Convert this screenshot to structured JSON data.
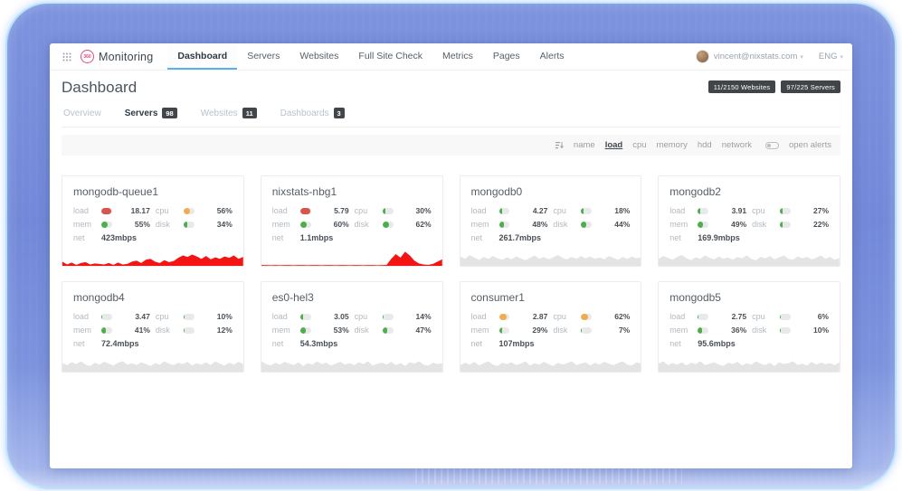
{
  "nav": {
    "logo_badge": "360",
    "logo_text": "Monitoring",
    "tabs": [
      {
        "label": "Dashboard",
        "active": true
      },
      {
        "label": "Servers",
        "active": false
      },
      {
        "label": "Websites",
        "active": false
      },
      {
        "label": "Full Site Check",
        "active": false
      },
      {
        "label": "Metrics",
        "active": false
      },
      {
        "label": "Pages",
        "active": false
      },
      {
        "label": "Alerts",
        "active": false
      }
    ],
    "user_email": "vincent@nixstats.com",
    "language": "ENG"
  },
  "page": {
    "title": "Dashboard",
    "counters": [
      "11/2150 Websites",
      "97/225 Servers"
    ],
    "subtabs": [
      {
        "label": "Overview",
        "count": null,
        "active": false
      },
      {
        "label": "Servers",
        "count": "98",
        "active": true
      },
      {
        "label": "Websites",
        "count": "11",
        "active": false
      },
      {
        "label": "Dashboards",
        "count": "3",
        "active": false
      }
    ],
    "sortbar": {
      "options": [
        {
          "label": "name",
          "active": false
        },
        {
          "label": "load",
          "active": true
        },
        {
          "label": "cpu",
          "active": false
        },
        {
          "label": "memory",
          "active": false
        },
        {
          "label": "hdd",
          "active": false
        },
        {
          "label": "network",
          "active": false
        }
      ],
      "toggle_label": "open alerts"
    }
  },
  "theme": {
    "accent_blue": "#58b0ef",
    "bar_red": "#d9534f",
    "bar_orange": "#f0ad4e",
    "bar_green": "#4cae4c",
    "spark_red": "#f51414",
    "spark_gray": "#e4e4e4",
    "badge_dark": "#42464b"
  },
  "servers": [
    {
      "name": "mongodb-queue1",
      "metrics": {
        "load": {
          "label": "load",
          "value": "18.17",
          "pct": 93,
          "color": "#d9534f"
        },
        "cpu": {
          "label": "cpu",
          "value": "56%",
          "pct": 56,
          "color": "#f0ad4e"
        },
        "mem": {
          "label": "mem",
          "value": "55%",
          "pct": 55,
          "color": "#4cae4c"
        },
        "disk": {
          "label": "disk",
          "value": "34%",
          "pct": 34,
          "color": "#4cae4c"
        },
        "net": {
          "label": "net",
          "value": "423mbps"
        }
      },
      "spark": {
        "color": "#f51414",
        "baseline": true,
        "values": [
          18,
          6,
          14,
          4,
          12,
          16,
          6,
          10,
          8,
          6,
          12,
          4,
          14,
          6,
          8,
          18,
          22,
          12,
          26,
          30,
          18,
          12,
          24,
          16,
          20,
          34,
          44,
          38,
          48,
          40,
          30,
          42,
          28,
          36,
          30,
          40,
          34,
          44,
          30,
          38
        ]
      }
    },
    {
      "name": "nixstats-nbg1",
      "metrics": {
        "load": {
          "label": "load",
          "value": "5.79",
          "pct": 97,
          "color": "#d9534f"
        },
        "cpu": {
          "label": "cpu",
          "value": "30%",
          "pct": 30,
          "color": "#4cae4c"
        },
        "mem": {
          "label": "mem",
          "value": "60%",
          "pct": 60,
          "color": "#4cae4c"
        },
        "disk": {
          "label": "disk",
          "value": "62%",
          "pct": 62,
          "color": "#4cae4c"
        },
        "net": {
          "label": "net",
          "value": "1.1mbps"
        }
      },
      "spark": {
        "color": "#f51414",
        "baseline": true,
        "values": [
          3,
          3,
          2,
          3,
          2,
          3,
          3,
          2,
          3,
          3,
          2,
          3,
          3,
          2,
          3,
          3,
          2,
          3,
          3,
          2,
          3,
          3,
          2,
          3,
          3,
          2,
          3,
          4,
          30,
          50,
          35,
          60,
          44,
          22,
          10,
          6,
          4,
          8,
          18,
          28
        ]
      }
    },
    {
      "name": "mongodb0",
      "metrics": {
        "load": {
          "label": "load",
          "value": "4.27",
          "pct": 28,
          "color": "#4cae4c"
        },
        "cpu": {
          "label": "cpu",
          "value": "18%",
          "pct": 18,
          "color": "#4cae4c"
        },
        "mem": {
          "label": "mem",
          "value": "48%",
          "pct": 48,
          "color": "#4cae4c"
        },
        "disk": {
          "label": "disk",
          "value": "44%",
          "pct": 44,
          "color": "#4cae4c"
        },
        "net": {
          "label": "net",
          "value": "261.7mbps"
        }
      },
      "spark": {
        "color": "#e4e4e4",
        "baseline": false,
        "values": [
          40,
          30,
          45,
          35,
          25,
          38,
          30,
          42,
          32,
          26,
          36,
          28,
          40,
          32,
          24,
          34,
          44,
          30,
          38,
          28,
          36,
          46,
          34,
          28,
          38,
          30,
          42,
          32,
          40,
          30,
          36,
          28,
          42,
          34,
          26,
          38,
          30,
          40,
          32,
          36
        ]
      }
    },
    {
      "name": "mongodb2",
      "metrics": {
        "load": {
          "label": "load",
          "value": "3.91",
          "pct": 24,
          "color": "#4cae4c"
        },
        "cpu": {
          "label": "cpu",
          "value": "27%",
          "pct": 27,
          "color": "#4cae4c"
        },
        "mem": {
          "label": "mem",
          "value": "49%",
          "pct": 49,
          "color": "#4cae4c"
        },
        "disk": {
          "label": "disk",
          "value": "22%",
          "pct": 22,
          "color": "#4cae4c"
        },
        "net": {
          "label": "net",
          "value": "169.9mbps"
        }
      },
      "spark": {
        "color": "#e4e4e4",
        "baseline": false,
        "values": [
          30,
          42,
          34,
          26,
          38,
          46,
          32,
          24,
          36,
          30,
          44,
          34,
          28,
          40,
          30,
          36,
          26,
          38,
          32,
          44,
          30,
          24,
          38,
          32,
          42,
          28,
          36,
          44,
          30,
          26,
          40,
          32,
          38,
          28,
          34,
          44,
          30,
          38,
          26,
          34
        ]
      }
    },
    {
      "name": "mongodb4",
      "metrics": {
        "load": {
          "label": "load",
          "value": "3.47",
          "pct": 9,
          "color": "#4cae4c"
        },
        "cpu": {
          "label": "cpu",
          "value": "10%",
          "pct": 10,
          "color": "#4cae4c"
        },
        "mem": {
          "label": "mem",
          "value": "41%",
          "pct": 41,
          "color": "#4cae4c"
        },
        "disk": {
          "label": "disk",
          "value": "12%",
          "pct": 12,
          "color": "#4cae4c"
        },
        "net": {
          "label": "net",
          "value": "72.4mbps"
        }
      },
      "spark": {
        "color": "#e4e4e4",
        "baseline": false,
        "values": [
          36,
          28,
          40,
          32,
          44,
          30,
          24,
          38,
          30,
          42,
          34,
          26,
          38,
          44,
          30,
          36,
          28,
          40,
          32,
          24,
          36,
          30,
          44,
          34,
          28,
          38,
          32,
          42,
          26,
          36,
          30,
          40,
          28,
          44,
          34,
          26,
          38,
          30,
          42,
          32
        ]
      }
    },
    {
      "name": "es0-hel3",
      "metrics": {
        "load": {
          "label": "load",
          "value": "3.05",
          "pct": 25,
          "color": "#4cae4c"
        },
        "cpu": {
          "label": "cpu",
          "value": "14%",
          "pct": 14,
          "color": "#4cae4c"
        },
        "mem": {
          "label": "mem",
          "value": "53%",
          "pct": 53,
          "color": "#4cae4c"
        },
        "disk": {
          "label": "disk",
          "value": "47%",
          "pct": 47,
          "color": "#4cae4c"
        },
        "net": {
          "label": "net",
          "value": "54.3mbps"
        }
      },
      "spark": {
        "color": "#e4e4e4",
        "baseline": false,
        "values": [
          44,
          32,
          26,
          38,
          30,
          42,
          34,
          28,
          40,
          24,
          36,
          30,
          44,
          32,
          38,
          26,
          34,
          42,
          30,
          36,
          28,
          40,
          32,
          44,
          26,
          34,
          38,
          30,
          42,
          28,
          36,
          24,
          40,
          34,
          44,
          30,
          26,
          38,
          32,
          36
        ]
      }
    },
    {
      "name": "consumer1",
      "metrics": {
        "load": {
          "label": "load",
          "value": "2.87",
          "pct": 70,
          "color": "#f0ad4e"
        },
        "cpu": {
          "label": "cpu",
          "value": "62%",
          "pct": 62,
          "color": "#f0ad4e"
        },
        "mem": {
          "label": "mem",
          "value": "29%",
          "pct": 29,
          "color": "#4cae4c"
        },
        "disk": {
          "label": "disk",
          "value": "7%",
          "pct": 7,
          "color": "#4cae4c"
        },
        "net": {
          "label": "net",
          "value": "107mbps"
        }
      },
      "spark": {
        "color": "#e4e4e4",
        "baseline": false,
        "values": [
          28,
          38,
          30,
          42,
          26,
          36,
          44,
          30,
          24,
          38,
          32,
          40,
          28,
          34,
          44,
          26,
          36,
          30,
          42,
          32,
          24,
          38,
          30,
          36,
          44,
          28,
          34,
          40,
          26,
          38,
          30,
          42,
          34,
          28,
          36,
          44,
          30,
          26,
          40,
          34
        ]
      }
    },
    {
      "name": "mongodb5",
      "metrics": {
        "load": {
          "label": "load",
          "value": "2.75",
          "pct": 8,
          "color": "#4cae4c"
        },
        "cpu": {
          "label": "cpu",
          "value": "6%",
          "pct": 6,
          "color": "#4cae4c"
        },
        "mem": {
          "label": "mem",
          "value": "36%",
          "pct": 36,
          "color": "#4cae4c"
        },
        "disk": {
          "label": "disk",
          "value": "10%",
          "pct": 10,
          "color": "#4cae4c"
        },
        "net": {
          "label": "net",
          "value": "95.6mbps"
        }
      },
      "spark": {
        "color": "#e4e4e4",
        "baseline": false,
        "values": [
          34,
          44,
          28,
          36,
          30,
          40,
          26,
          38,
          32,
          44,
          28,
          34,
          40,
          30,
          24,
          38,
          32,
          42,
          26,
          36,
          30,
          44,
          34,
          28,
          38,
          24,
          40,
          32,
          36,
          44,
          28,
          34,
          26,
          42,
          30,
          38,
          32,
          36,
          28,
          40
        ]
      }
    }
  ]
}
